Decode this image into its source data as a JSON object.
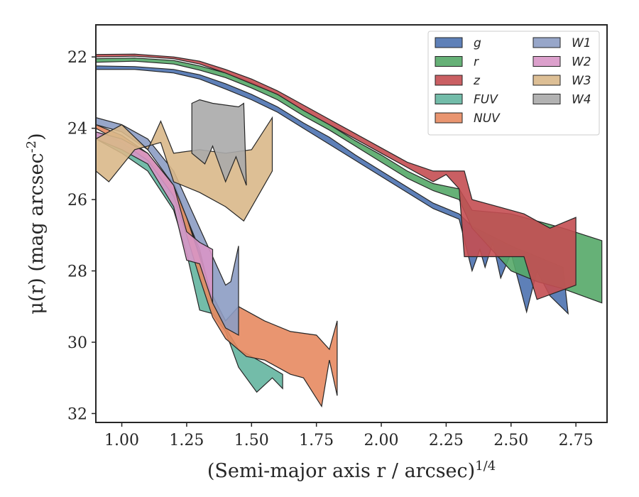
{
  "chart_data": {
    "type": "area",
    "xlabel": "(Semi-major axis r / arcsec)^{1/4}",
    "ylabel": "μ(r) (mag arcsec^{-2})",
    "xlim": [
      0.9,
      2.87
    ],
    "ylim": [
      32.25,
      21.1
    ],
    "y_inverted": true,
    "x_ticks": [
      "1.00",
      "1.25",
      "1.50",
      "1.75",
      "2.00",
      "2.25",
      "2.50",
      "2.75"
    ],
    "x_tick_values": [
      1.0,
      1.25,
      1.5,
      1.75,
      2.0,
      2.25,
      2.5,
      2.75
    ],
    "y_ticks": [
      "22",
      "24",
      "26",
      "28",
      "30",
      "32"
    ],
    "y_tick_values": [
      22,
      24,
      26,
      28,
      30,
      32
    ],
    "grid": false,
    "legend_position": "top-right",
    "legend_columns": 2,
    "series": [
      {
        "name": "g",
        "color": "#4c72b0",
        "upper": [
          [
            0.9,
            22.25
          ],
          [
            1.05,
            22.27
          ],
          [
            1.2,
            22.35
          ],
          [
            1.3,
            22.5
          ],
          [
            1.4,
            22.75
          ],
          [
            1.5,
            23.05
          ],
          [
            1.6,
            23.4
          ],
          [
            1.7,
            23.85
          ],
          [
            1.8,
            24.25
          ],
          [
            1.9,
            24.75
          ],
          [
            2.0,
            25.2
          ],
          [
            2.1,
            25.65
          ],
          [
            2.2,
            26.1
          ],
          [
            2.3,
            26.4
          ],
          [
            2.35,
            26.75
          ],
          [
            2.5,
            27.3
          ],
          [
            2.7,
            27.9
          ]
        ],
        "lower": [
          [
            0.9,
            22.35
          ],
          [
            1.05,
            22.35
          ],
          [
            1.2,
            22.45
          ],
          [
            1.3,
            22.62
          ],
          [
            1.4,
            22.9
          ],
          [
            1.5,
            23.2
          ],
          [
            1.6,
            23.55
          ],
          [
            1.7,
            24.0
          ],
          [
            1.8,
            24.45
          ],
          [
            1.9,
            24.9
          ],
          [
            2.0,
            25.35
          ],
          [
            2.1,
            25.8
          ],
          [
            2.2,
            26.25
          ],
          [
            2.3,
            26.55
          ],
          [
            2.35,
            28.0
          ],
          [
            2.38,
            27.4
          ],
          [
            2.4,
            27.9
          ],
          [
            2.43,
            27.2
          ],
          [
            2.46,
            28.2
          ],
          [
            2.5,
            27.5
          ],
          [
            2.56,
            29.15
          ],
          [
            2.6,
            28.0
          ],
          [
            2.65,
            28.7
          ],
          [
            2.72,
            29.2
          ]
        ]
      },
      {
        "name": "r",
        "color": "#55a868",
        "upper": [
          [
            0.9,
            22.05
          ],
          [
            1.05,
            22.03
          ],
          [
            1.2,
            22.1
          ],
          [
            1.3,
            22.25
          ],
          [
            1.4,
            22.45
          ],
          [
            1.5,
            22.72
          ],
          [
            1.6,
            23.05
          ],
          [
            1.7,
            23.5
          ],
          [
            1.8,
            23.9
          ],
          [
            1.9,
            24.35
          ],
          [
            2.0,
            24.75
          ],
          [
            2.1,
            25.2
          ],
          [
            2.2,
            25.55
          ],
          [
            2.3,
            25.7
          ],
          [
            2.35,
            26.3
          ],
          [
            2.5,
            26.4
          ],
          [
            2.7,
            26.8
          ],
          [
            2.85,
            27.15
          ]
        ],
        "lower": [
          [
            0.9,
            22.15
          ],
          [
            1.05,
            22.12
          ],
          [
            1.2,
            22.2
          ],
          [
            1.3,
            22.37
          ],
          [
            1.4,
            22.58
          ],
          [
            1.5,
            22.87
          ],
          [
            1.6,
            23.2
          ],
          [
            1.7,
            23.65
          ],
          [
            1.8,
            24.05
          ],
          [
            1.9,
            24.5
          ],
          [
            2.0,
            24.95
          ],
          [
            2.1,
            25.4
          ],
          [
            2.2,
            25.75
          ],
          [
            2.3,
            26.0
          ],
          [
            2.35,
            26.8
          ],
          [
            2.5,
            28.0
          ],
          [
            2.6,
            28.3
          ],
          [
            2.7,
            28.5
          ],
          [
            2.85,
            28.9
          ]
        ]
      },
      {
        "name": "z",
        "color": "#c44e52",
        "upper": [
          [
            0.9,
            21.93
          ],
          [
            1.05,
            21.92
          ],
          [
            1.2,
            22.0
          ],
          [
            1.3,
            22.12
          ],
          [
            1.4,
            22.35
          ],
          [
            1.5,
            22.62
          ],
          [
            1.6,
            22.95
          ],
          [
            1.7,
            23.35
          ],
          [
            1.8,
            23.75
          ],
          [
            1.9,
            24.15
          ],
          [
            2.0,
            24.55
          ],
          [
            2.1,
            24.95
          ],
          [
            2.2,
            25.2
          ],
          [
            2.3,
            25.2
          ],
          [
            2.32,
            25.2
          ],
          [
            2.35,
            26.0
          ],
          [
            2.45,
            26.2
          ],
          [
            2.55,
            26.4
          ],
          [
            2.65,
            26.8
          ],
          [
            2.75,
            26.5
          ]
        ],
        "lower": [
          [
            0.9,
            22.0
          ],
          [
            1.05,
            21.98
          ],
          [
            1.2,
            22.05
          ],
          [
            1.3,
            22.2
          ],
          [
            1.4,
            22.45
          ],
          [
            1.5,
            22.75
          ],
          [
            1.6,
            23.05
          ],
          [
            1.7,
            23.5
          ],
          [
            1.8,
            23.9
          ],
          [
            1.9,
            24.3
          ],
          [
            2.0,
            24.7
          ],
          [
            2.1,
            25.1
          ],
          [
            2.2,
            25.5
          ],
          [
            2.25,
            25.3
          ],
          [
            2.3,
            25.7
          ],
          [
            2.32,
            27.6
          ],
          [
            2.45,
            27.6
          ],
          [
            2.55,
            27.6
          ],
          [
            2.6,
            28.8
          ],
          [
            2.75,
            28.4
          ]
        ]
      },
      {
        "name": "FUV",
        "color": "#64b5a0",
        "upper": [
          [
            0.9,
            24.1
          ],
          [
            1.0,
            24.4
          ],
          [
            1.1,
            24.9
          ],
          [
            1.2,
            25.5
          ],
          [
            1.25,
            26.5
          ],
          [
            1.3,
            27.5
          ],
          [
            1.35,
            28.7
          ],
          [
            1.4,
            29.6
          ],
          [
            1.45,
            30.2
          ],
          [
            1.55,
            30.6
          ],
          [
            1.62,
            30.9
          ]
        ],
        "lower": [
          [
            0.9,
            24.3
          ],
          [
            1.0,
            24.7
          ],
          [
            1.1,
            25.2
          ],
          [
            1.2,
            26.3
          ],
          [
            1.25,
            27.5
          ],
          [
            1.3,
            29.1
          ],
          [
            1.35,
            29.2
          ],
          [
            1.4,
            29.7
          ],
          [
            1.45,
            30.7
          ],
          [
            1.52,
            31.4
          ],
          [
            1.58,
            31.0
          ],
          [
            1.62,
            31.3
          ]
        ]
      },
      {
        "name": "NUV",
        "color": "#e78a61",
        "upper": [
          [
            0.9,
            23.9
          ],
          [
            1.0,
            24.2
          ],
          [
            1.1,
            24.7
          ],
          [
            1.2,
            25.6
          ],
          [
            1.25,
            26.5
          ],
          [
            1.3,
            27.6
          ],
          [
            1.35,
            28.7
          ],
          [
            1.4,
            29.4
          ],
          [
            1.45,
            29.0
          ],
          [
            1.55,
            29.4
          ],
          [
            1.65,
            29.7
          ],
          [
            1.75,
            29.8
          ],
          [
            1.8,
            30.2
          ],
          [
            1.83,
            29.4
          ]
        ],
        "lower": [
          [
            0.9,
            24.0
          ],
          [
            1.0,
            24.4
          ],
          [
            1.1,
            24.9
          ],
          [
            1.2,
            25.9
          ],
          [
            1.25,
            27.0
          ],
          [
            1.3,
            28.2
          ],
          [
            1.35,
            29.3
          ],
          [
            1.4,
            29.9
          ],
          [
            1.48,
            30.4
          ],
          [
            1.55,
            30.5
          ],
          [
            1.65,
            30.9
          ],
          [
            1.7,
            31.0
          ],
          [
            1.77,
            31.8
          ],
          [
            1.8,
            30.5
          ],
          [
            1.83,
            31.5
          ]
        ]
      },
      {
        "name": "W1",
        "color": "#8c9cc3",
        "upper": [
          [
            0.9,
            23.7
          ],
          [
            1.0,
            23.9
          ],
          [
            1.1,
            24.3
          ],
          [
            1.2,
            25.2
          ],
          [
            1.3,
            26.8
          ],
          [
            1.4,
            28.4
          ],
          [
            1.42,
            28.3
          ],
          [
            1.45,
            27.3
          ]
        ],
        "lower": [
          [
            0.9,
            23.9
          ],
          [
            1.0,
            24.1
          ],
          [
            1.1,
            24.6
          ],
          [
            1.2,
            25.6
          ],
          [
            1.3,
            27.4
          ],
          [
            1.35,
            28.9
          ],
          [
            1.4,
            29.6
          ],
          [
            1.45,
            29.8
          ]
        ]
      },
      {
        "name": "W2",
        "color": "#d896c6",
        "upper": [
          [
            0.9,
            24.1
          ],
          [
            1.0,
            24.3
          ],
          [
            1.1,
            24.7
          ],
          [
            1.2,
            25.6
          ],
          [
            1.25,
            26.9
          ],
          [
            1.3,
            27.2
          ],
          [
            1.35,
            27.4
          ]
        ],
        "lower": [
          [
            0.9,
            24.3
          ],
          [
            1.0,
            24.6
          ],
          [
            1.1,
            25.0
          ],
          [
            1.2,
            26.2
          ],
          [
            1.25,
            27.7
          ],
          [
            1.3,
            27.8
          ],
          [
            1.35,
            28.9
          ]
        ]
      },
      {
        "name": "W3",
        "color": "#d9b889",
        "upper": [
          [
            0.9,
            24.3
          ],
          [
            1.0,
            23.9
          ],
          [
            1.1,
            24.6
          ],
          [
            1.15,
            23.8
          ],
          [
            1.2,
            24.7
          ],
          [
            1.3,
            24.6
          ],
          [
            1.4,
            24.7
          ],
          [
            1.5,
            24.6
          ],
          [
            1.58,
            23.7
          ]
        ],
        "lower": [
          [
            0.9,
            25.2
          ],
          [
            0.95,
            25.5
          ],
          [
            1.05,
            24.6
          ],
          [
            1.15,
            24.4
          ],
          [
            1.2,
            25.5
          ],
          [
            1.3,
            25.8
          ],
          [
            1.4,
            26.2
          ],
          [
            1.47,
            26.6
          ],
          [
            1.58,
            25.2
          ]
        ]
      },
      {
        "name": "W4",
        "color": "#aaaaaa",
        "upper": [
          [
            1.27,
            23.3
          ],
          [
            1.3,
            23.2
          ],
          [
            1.35,
            23.3
          ],
          [
            1.45,
            23.4
          ],
          [
            1.47,
            23.3
          ]
        ],
        "lower": [
          [
            1.27,
            24.7
          ],
          [
            1.32,
            25.0
          ],
          [
            1.35,
            24.5
          ],
          [
            1.4,
            25.5
          ],
          [
            1.44,
            24.8
          ],
          [
            1.48,
            25.6
          ]
        ]
      }
    ]
  }
}
